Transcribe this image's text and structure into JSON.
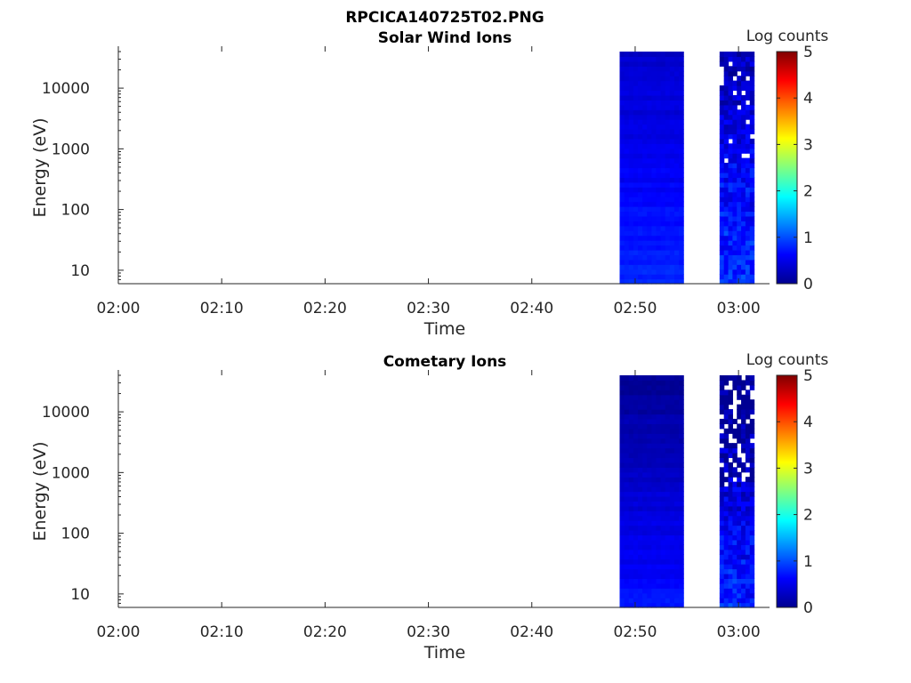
{
  "figure": {
    "title": "RPCICA140725T02.PNG"
  },
  "colormap": [
    "#00008f",
    "#0000ff",
    "#0080ff",
    "#00ffff",
    "#80ff80",
    "#ffff00",
    "#ff8000",
    "#ff0000",
    "#800000"
  ],
  "chart_data": [
    {
      "type": "heatmap",
      "title": "Solar Wind Ions",
      "xlabel": "Time",
      "ylabel": "Energy (eV)",
      "x_range": [
        "02:00",
        "03:03"
      ],
      "x_ticks": [
        "02:00",
        "02:10",
        "02:20",
        "02:30",
        "02:40",
        "02:50",
        "03:00"
      ],
      "y_scale": "log",
      "y_range": [
        6,
        40000
      ],
      "y_ticks": [
        10,
        100,
        1000,
        10000
      ],
      "y_tick_labels": [
        "10",
        "100",
        "1000",
        "10000"
      ],
      "colorbar": {
        "label": "Log counts",
        "range": [
          0,
          5
        ],
        "ticks": [
          "0",
          "1",
          "2",
          "3",
          "4",
          "5"
        ]
      },
      "data_segments": [
        {
          "start": "02:48:30",
          "end": "02:54:40",
          "typical_log_counts": [
            0.3,
            0.8
          ]
        },
        {
          "start": "02:58:10",
          "end": "03:01:30",
          "typical_log_counts": [
            0.2,
            0.9
          ]
        }
      ]
    },
    {
      "type": "heatmap",
      "title": "Cometary Ions",
      "xlabel": "Time",
      "ylabel": "Energy (eV)",
      "x_range": [
        "02:00",
        "03:03"
      ],
      "x_ticks": [
        "02:00",
        "02:10",
        "02:20",
        "02:30",
        "02:40",
        "02:50",
        "03:00"
      ],
      "y_scale": "log",
      "y_range": [
        6,
        40000
      ],
      "y_ticks": [
        10,
        100,
        1000,
        10000
      ],
      "y_tick_labels": [
        "10",
        "100",
        "1000",
        "10000"
      ],
      "colorbar": {
        "label": "Log counts",
        "range": [
          0,
          5
        ],
        "ticks": [
          "0",
          "1",
          "2",
          "3",
          "4",
          "5"
        ]
      },
      "data_segments": [
        {
          "start": "02:48:30",
          "end": "02:54:40",
          "typical_log_counts": [
            0.0,
            0.7
          ]
        },
        {
          "start": "02:58:10",
          "end": "03:01:30",
          "typical_log_counts": [
            0.0,
            0.8
          ]
        }
      ]
    }
  ]
}
